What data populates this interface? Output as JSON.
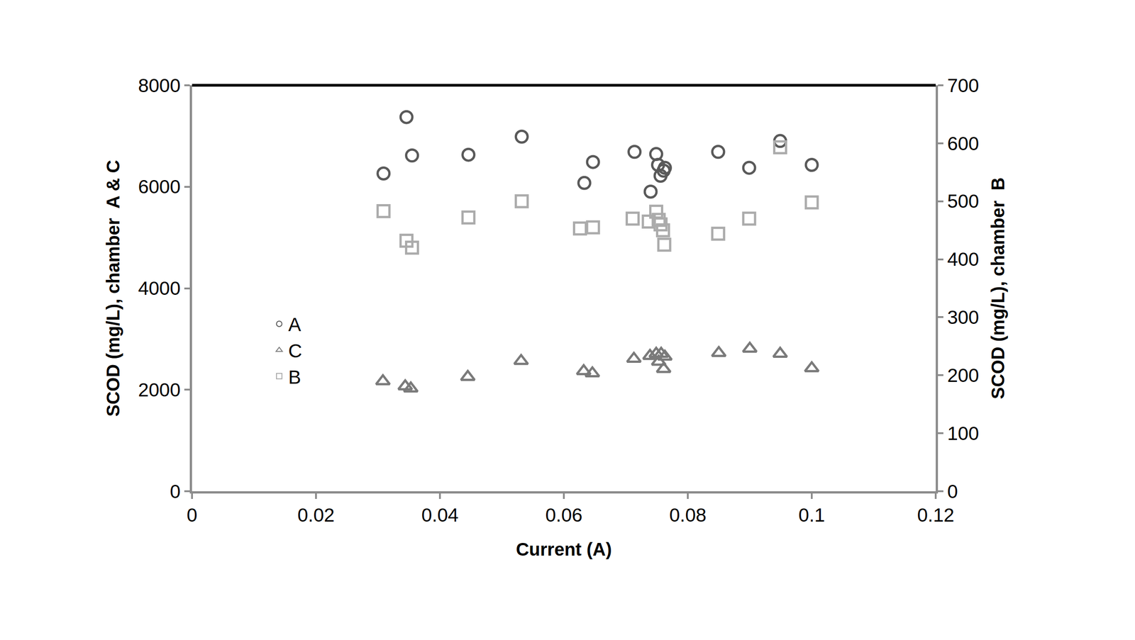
{
  "chart_data": {
    "type": "scatter",
    "x_label": "Current (A)",
    "y_label": "SCOD (mg/L), chamber  A & C",
    "y2_label": "SCOD (mg/L), chamber  B",
    "xlim": [
      0,
      0.12
    ],
    "xticks": [
      0,
      0.02,
      0.04,
      0.06,
      0.08,
      0.1,
      0.12
    ],
    "ylim": [
      0,
      8000
    ],
    "yticks": [
      0,
      2000,
      4000,
      6000,
      8000
    ],
    "y2lim": [
      0,
      700
    ],
    "y2ticks": [
      0,
      100,
      200,
      300,
      400,
      500,
      600,
      700
    ],
    "grid": false,
    "legend": "left",
    "series": [
      {
        "name": "A",
        "color": "#595959",
        "marker": "circle-open",
        "x": [
          0.0309,
          0.0346,
          0.0355,
          0.0446,
          0.0532,
          0.0633,
          0.0647,
          0.0714,
          0.074,
          0.0749,
          0.0752,
          0.0756,
          0.0761,
          0.0763,
          0.0849,
          0.0899,
          0.0949,
          0.1
        ],
        "values": [
          6261,
          7373,
          6617,
          6631,
          6987,
          6075,
          6488,
          6688,
          5904,
          6645,
          6431,
          6217,
          6317,
          6374,
          6688,
          6374,
          6902,
          6431
        ]
      },
      {
        "name": "C",
        "color": "#7a7a7a",
        "marker": "triangle-up-open",
        "x": [
          0.0308,
          0.0344,
          0.0353,
          0.0445,
          0.0531,
          0.0632,
          0.0646,
          0.0713,
          0.0739,
          0.0749,
          0.0753,
          0.0757,
          0.0761,
          0.0763,
          0.085,
          0.09,
          0.0949,
          0.1
        ],
        "values": [
          2168,
          2068,
          2025,
          2253,
          2567,
          2367,
          2324,
          2610,
          2667,
          2709,
          2553,
          2709,
          2410,
          2652,
          2724,
          2809,
          2709,
          2424
        ]
      },
      {
        "name": "B",
        "color": "#ababab",
        "marker": "square-open",
        "axis": "y2",
        "x": [
          0.0309,
          0.0346,
          0.0355,
          0.0446,
          0.0532,
          0.0626,
          0.0647,
          0.0711,
          0.0737,
          0.0749,
          0.0753,
          0.0756,
          0.076,
          0.0762,
          0.0849,
          0.0899,
          0.0949,
          0.1
        ],
        "values": [
          483,
          432,
          420,
          472,
          500,
          453,
          455,
          470,
          465,
          482,
          468,
          460,
          450,
          425,
          444,
          470,
          593,
          498
        ]
      }
    ]
  }
}
